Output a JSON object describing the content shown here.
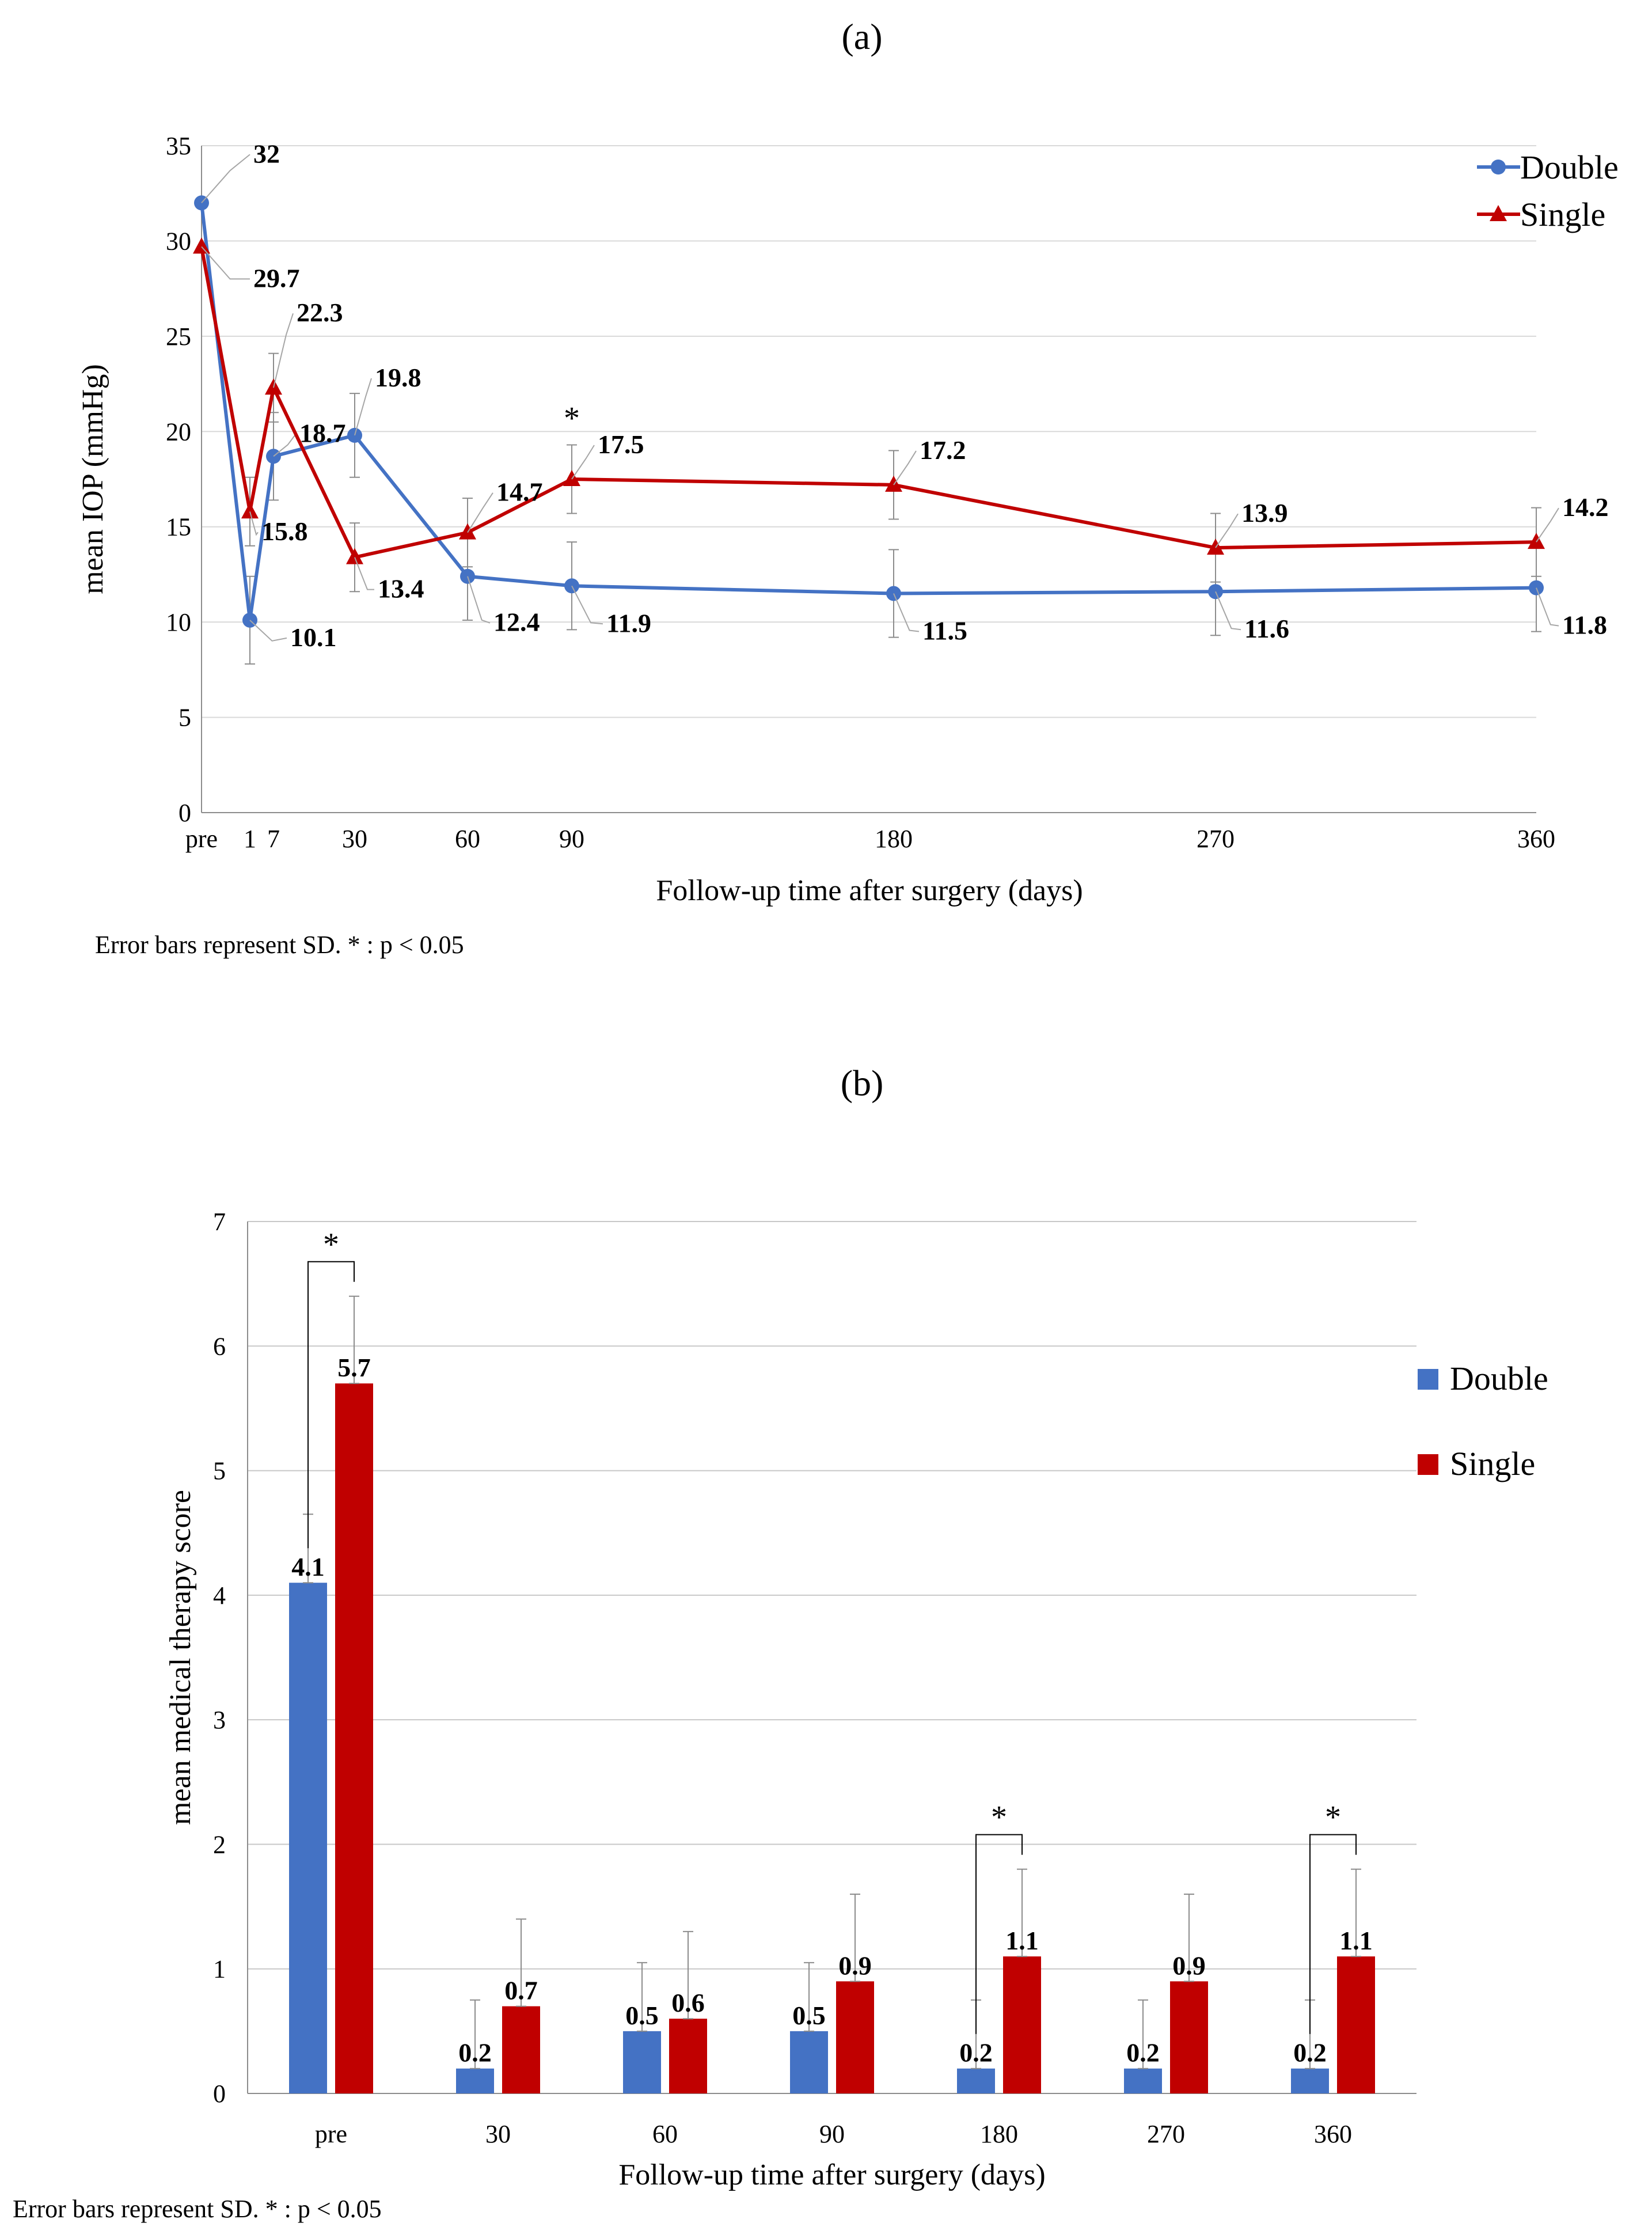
{
  "panels": {
    "a": {
      "label": "(a)"
    },
    "b": {
      "label": "(b)"
    }
  },
  "chart_data": [
    {
      "type": "line",
      "panel": "a",
      "x_tick_labels": [
        "pre",
        "1",
        "7",
        "30",
        "60",
        "90",
        "180",
        "270",
        "360"
      ],
      "x": [
        0,
        1,
        7,
        30,
        60,
        90,
        180,
        270,
        360
      ],
      "ylim": [
        0,
        35
      ],
      "yticks": [
        0,
        5,
        10,
        15,
        20,
        25,
        30,
        35
      ],
      "xlabel": "Follow-up time after surgery (days)",
      "ylabel": "mean IOP (mmHg)",
      "grid": true,
      "legend_position": "top-right",
      "series": [
        {
          "name": "Double",
          "color": "#4472C4",
          "marker": "circle",
          "values": [
            32,
            10.1,
            18.7,
            19.8,
            12.4,
            11.9,
            11.5,
            11.6,
            11.8
          ],
          "labels": [
            "32",
            "10.1",
            "18.7",
            "19.8",
            "12.4",
            "11.9",
            "11.5",
            "11.6",
            "11.8"
          ],
          "sd": [
            0,
            2.3,
            2.3,
            2.2,
            2.3,
            2.3,
            2.3,
            2.3,
            2.3
          ]
        },
        {
          "name": "Single",
          "color": "#C00000",
          "marker": "triangle",
          "values": [
            29.7,
            15.8,
            22.3,
            13.4,
            14.7,
            17.5,
            17.2,
            13.9,
            14.2
          ],
          "labels": [
            "29.7",
            "15.8",
            "22.3",
            "13.4",
            "14.7",
            "17.5",
            "17.2",
            "13.9",
            "14.2"
          ],
          "sd": [
            0,
            1.8,
            1.8,
            1.8,
            1.8,
            1.8,
            1.8,
            1.8,
            1.8
          ]
        }
      ],
      "significance": [
        {
          "x": 90,
          "marker": "*"
        }
      ],
      "footnote": "Error bars represent SD.  * : p < 0.05"
    },
    {
      "type": "bar",
      "panel": "b",
      "categories": [
        "pre",
        "30",
        "60",
        "90",
        "180",
        "270",
        "360"
      ],
      "ylim": [
        0,
        7
      ],
      "yticks": [
        0,
        1,
        2,
        3,
        4,
        5,
        6,
        7
      ],
      "xlabel": "Follow-up time after surgery (days)",
      "ylabel": "mean medical therapy score",
      "grid": true,
      "legend_position": "right",
      "series": [
        {
          "name": "Double",
          "color": "#4472C4",
          "values": [
            4.1,
            0.2,
            0.5,
            0.5,
            0.2,
            0.2,
            0.2
          ],
          "labels": [
            "4.1",
            "0.2",
            "0.5",
            "0.5",
            "0.2",
            "0.2",
            "0.2"
          ],
          "sd": [
            0.55,
            0.55,
            0.55,
            0.55,
            0.55,
            0.55,
            0.55
          ]
        },
        {
          "name": "Single",
          "color": "#C00000",
          "values": [
            5.7,
            0.7,
            0.6,
            0.9,
            1.1,
            0.9,
            1.1
          ],
          "labels": [
            "5.7",
            "0.7",
            "0.6",
            "0.9",
            "1.1",
            "0.9",
            "1.1"
          ],
          "sd": [
            0.7,
            0.7,
            0.7,
            0.7,
            0.7,
            0.7,
            0.7
          ]
        }
      ],
      "significance": [
        {
          "category": "pre",
          "marker": "*"
        },
        {
          "category": "180",
          "marker": "*"
        },
        {
          "category": "360",
          "marker": "*"
        }
      ],
      "footnote": "Error bars represent SD.  * : p < 0.05"
    }
  ]
}
